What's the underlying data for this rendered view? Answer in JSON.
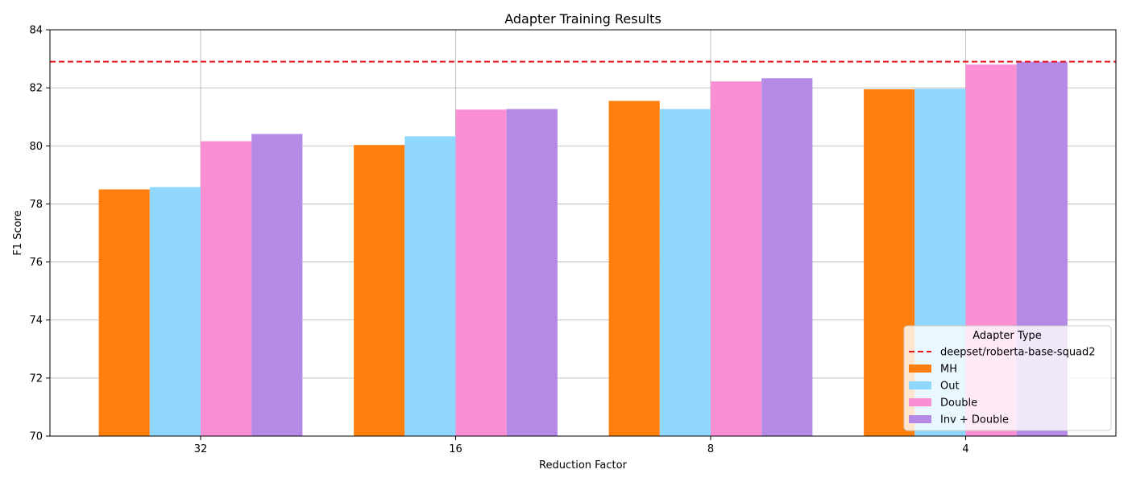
{
  "chart_data": {
    "type": "bar",
    "title": "Adapter Training Results",
    "xlabel": "Reduction Factor",
    "ylabel": "F1 Score",
    "categories": [
      "32",
      "16",
      "8",
      "4"
    ],
    "ylim": [
      70,
      84
    ],
    "yticks": [
      70,
      72,
      74,
      76,
      78,
      80,
      82,
      84
    ],
    "grid": true,
    "series": [
      {
        "name": "MH",
        "color": "#ff7f0e",
        "values": [
          78.5,
          80.03,
          81.55,
          81.95
        ]
      },
      {
        "name": "Out",
        "color": "#8fd7fd",
        "values": [
          78.58,
          80.33,
          81.27,
          81.97
        ]
      },
      {
        "name": "Double",
        "color": "#fb8fd4",
        "values": [
          80.16,
          81.25,
          82.22,
          82.8
        ]
      },
      {
        "name": "Inv + Double",
        "color": "#b589e6",
        "values": [
          80.41,
          81.27,
          82.33,
          82.9
        ]
      }
    ],
    "reference_line": {
      "name": "deepset/roberta-base-squad2",
      "value": 82.9,
      "color": "#e8141c",
      "style": "dashed"
    },
    "legend": {
      "title": "Adapter Type",
      "location": "lower-right"
    }
  }
}
